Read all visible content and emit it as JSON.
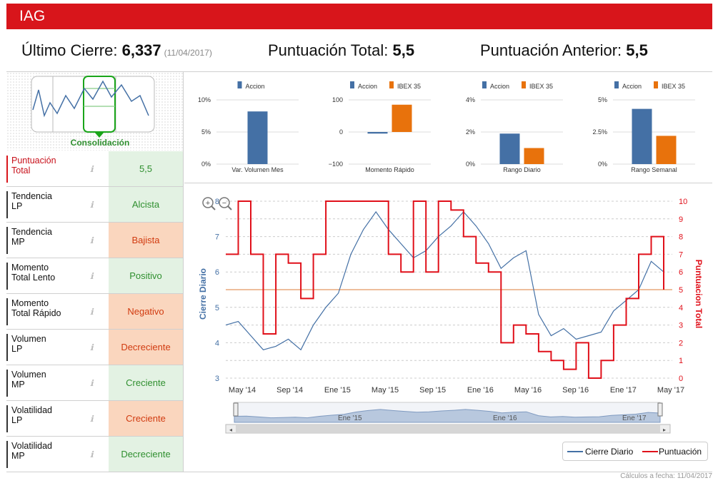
{
  "title": "IAG",
  "header": {
    "last_close_label": "Último Cierre:",
    "last_close_value": "6,337",
    "last_close_date": "(11/04/2017)",
    "total_score_label": "Puntuación Total:",
    "total_score_value": "5,5",
    "prev_score_label": "Puntuación Anterior:",
    "prev_score_value": "5,5"
  },
  "pattern_label": "Consolidación",
  "indicators": [
    {
      "line1": "Puntuación",
      "line2": "Total",
      "value": "5,5",
      "status": "green",
      "highlight": true
    },
    {
      "line1": "Tendencia",
      "line2": "LP",
      "value": "Alcista",
      "status": "green"
    },
    {
      "line1": "Tendencia",
      "line2": "MP",
      "value": "Bajista",
      "status": "orange"
    },
    {
      "line1": "Momento",
      "line2": "Total Lento",
      "value": "Positivo",
      "status": "green"
    },
    {
      "line1": "Momento",
      "line2": "Total Rápido",
      "value": "Negativo",
      "status": "orange"
    },
    {
      "line1": "Volumen",
      "line2": "LP",
      "value": "Decreciente",
      "status": "orange"
    },
    {
      "line1": "Volumen",
      "line2": "MP",
      "value": "Creciente",
      "status": "green"
    },
    {
      "line1": "Volatilidad",
      "line2": "LP",
      "value": "Creciente",
      "status": "orange"
    },
    {
      "line1": "Volatilidad",
      "line2": "MP",
      "value": "Decreciente",
      "status": "green"
    }
  ],
  "info_icon": "info-icon",
  "colors": {
    "accion": "#4470a5",
    "ibex": "#e8720c",
    "score": "#e0101a",
    "green_bg": "#e3f2e3",
    "orange_bg": "#fad6be"
  },
  "chart_data": [
    {
      "type": "bar",
      "title": "Var. Volumen Mes",
      "legend": [
        "Accion"
      ],
      "yticks": [
        "10%",
        "5%",
        "0%"
      ],
      "ylim": [
        0,
        10
      ],
      "series": [
        {
          "name": "Accion",
          "values": [
            8.2
          ]
        }
      ]
    },
    {
      "type": "bar",
      "title": "Momento Rápido",
      "legend": [
        "Accion",
        "IBEX 35"
      ],
      "yticks": [
        "100",
        "0",
        "−100"
      ],
      "ylim": [
        -100,
        100
      ],
      "series": [
        {
          "name": "Accion",
          "values": [
            -5
          ]
        },
        {
          "name": "IBEX 35",
          "values": [
            85
          ]
        }
      ]
    },
    {
      "type": "bar",
      "title": "Rango Diario",
      "legend": [
        "Accion",
        "IBEX 35"
      ],
      "yticks": [
        "4%",
        "2%",
        "0%"
      ],
      "ylim": [
        0,
        4
      ],
      "series": [
        {
          "name": "Accion",
          "values": [
            1.9
          ]
        },
        {
          "name": "IBEX 35",
          "values": [
            1.0
          ]
        }
      ]
    },
    {
      "type": "bar",
      "title": "Rango Semanal",
      "legend": [
        "Accion",
        "IBEX 35"
      ],
      "yticks": [
        "5%",
        "2.5%",
        "0%"
      ],
      "ylim": [
        0,
        5
      ],
      "series": [
        {
          "name": "Accion",
          "values": [
            4.3
          ]
        },
        {
          "name": "IBEX 35",
          "values": [
            2.2
          ]
        }
      ]
    },
    {
      "type": "line",
      "ylabel_left": "Cierre Diario",
      "ylabel_right": "Puntuacion Total",
      "ylim_left": [
        3,
        8
      ],
      "ylim_right": [
        0,
        10
      ],
      "yticks_left": [
        "8",
        "7",
        "6",
        "5",
        "4",
        "3"
      ],
      "yticks_right": [
        "10",
        "9",
        "8",
        "7",
        "6",
        "5",
        "4",
        "3",
        "2",
        "1",
        "0"
      ],
      "xticks": [
        "May '14",
        "Sep '14",
        "Ene '15",
        "May '15",
        "Sep '15",
        "Ene '16",
        "May '16",
        "Sep '16",
        "Ene '17",
        "May '17"
      ],
      "navigator_labels": [
        "Ene '15",
        "Ene '16",
        "Ene '17"
      ],
      "reference_line_right": 5,
      "series": [
        {
          "name": "Cierre Diario",
          "axis": "left",
          "x": [
            "May '14",
            "Jun '14",
            "Jul '14",
            "Ago '14",
            "Sep '14",
            "Oct '14",
            "Nov '14",
            "Dic '14",
            "Ene '15",
            "Feb '15",
            "Mar '15",
            "Abr '15",
            "May '15",
            "Jun '15",
            "Jul '15",
            "Ago '15",
            "Sep '15",
            "Oct '15",
            "Nov '15",
            "Dic '15",
            "Ene '16",
            "Feb '16",
            "Mar '16",
            "Abr '16",
            "May '16",
            "Jun '16",
            "Jul '16",
            "Ago '16",
            "Sep '16",
            "Oct '16",
            "Nov '16",
            "Dic '16",
            "Ene '17",
            "Feb '17",
            "Mar '17",
            "Abr '17"
          ],
          "values": [
            4.5,
            4.6,
            4.2,
            3.8,
            3.9,
            4.1,
            3.8,
            4.5,
            5.0,
            5.4,
            6.5,
            7.2,
            7.7,
            7.2,
            6.8,
            6.4,
            6.6,
            7.0,
            7.3,
            7.7,
            7.3,
            6.8,
            6.1,
            6.4,
            6.6,
            4.8,
            4.2,
            4.4,
            4.1,
            4.2,
            4.3,
            4.9,
            5.2,
            5.5,
            6.3,
            6.0
          ]
        },
        {
          "name": "Puntuación",
          "axis": "right",
          "x": [
            "May '14",
            "Jun '14",
            "Jul '14",
            "Ago '14",
            "Sep '14",
            "Oct '14",
            "Nov '14",
            "Dic '14",
            "Ene '15",
            "Feb '15",
            "Mar '15",
            "Abr '15",
            "May '15",
            "Jun '15",
            "Jul '15",
            "Ago '15",
            "Sep '15",
            "Oct '15",
            "Nov '15",
            "Dic '15",
            "Ene '16",
            "Feb '16",
            "Mar '16",
            "Abr '16",
            "May '16",
            "Jun '16",
            "Jul '16",
            "Ago '16",
            "Sep '16",
            "Oct '16",
            "Nov '16",
            "Dic '16",
            "Ene '17",
            "Feb '17",
            "Mar '17",
            "Abr '17"
          ],
          "values": [
            7,
            10,
            7,
            2.5,
            7,
            6.5,
            4.5,
            7,
            10,
            10,
            10,
            10,
            10,
            7,
            6,
            10,
            6,
            10,
            9.5,
            8,
            6.5,
            6,
            2,
            3,
            2.5,
            1.5,
            1,
            0.5,
            2,
            0,
            1,
            3,
            4.5,
            7,
            8,
            5
          ]
        }
      ]
    }
  ],
  "legend": {
    "series1": "Cierre Diario",
    "series2": "Puntuación"
  },
  "footer": "Cálculos a fecha: 11/04/2017"
}
